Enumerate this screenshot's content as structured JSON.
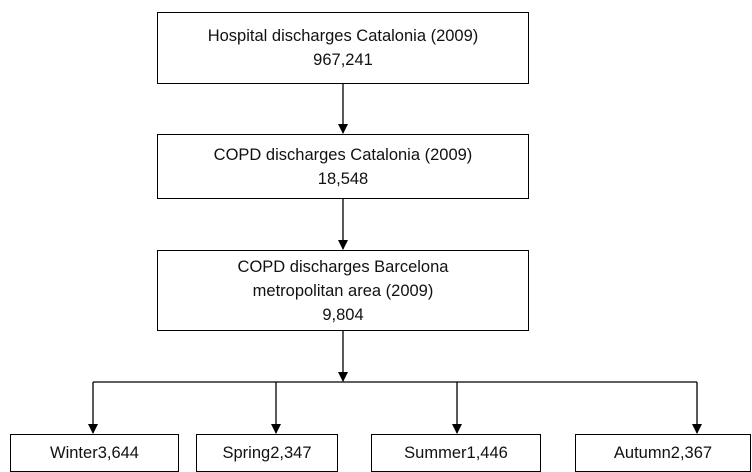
{
  "nodes": [
    {
      "label": "Hospital discharges Catalonia (2009)",
      "count": "967,241"
    },
    {
      "label": "COPD discharges Catalonia (2009)",
      "count": "18,548"
    },
    {
      "label": "COPD discharges Barcelona metropolitan area (2009)",
      "count": "9,804"
    }
  ],
  "seasons": [
    {
      "label": "Winter",
      "count": "3,644"
    },
    {
      "label": "Spring",
      "count": "2,347"
    },
    {
      "label": "Summer",
      "count": "1,446"
    },
    {
      "label": "Autumn",
      "count": "2,367"
    }
  ]
}
